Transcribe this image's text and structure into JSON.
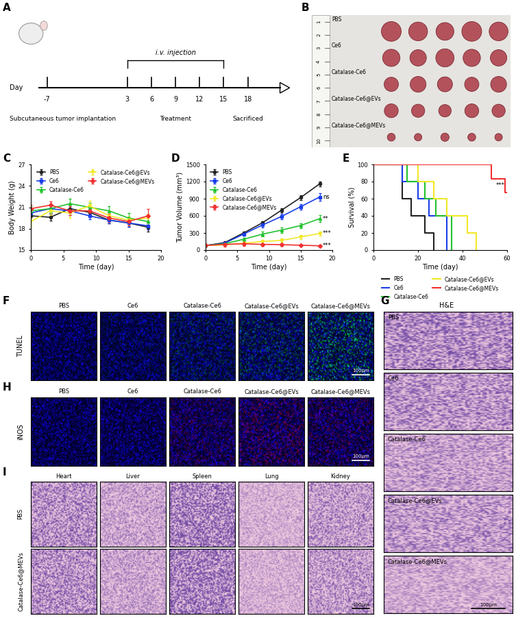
{
  "timeline": {
    "panel_label": "A",
    "axis_label": "Day",
    "days": [
      -7,
      3,
      6,
      9,
      12,
      15,
      18
    ],
    "injection_days": [
      3,
      6,
      9,
      12,
      15
    ],
    "injection_label": "i.v. injection",
    "events": [
      {
        "day": -7,
        "label": "Subcutaneous tumor implantation"
      },
      {
        "day": 9,
        "label": "Treatment"
      },
      {
        "day": 18,
        "label": "Sacrificed"
      }
    ]
  },
  "photo": {
    "panel_label": "B",
    "ruler_marks": [
      1,
      2,
      3,
      4,
      5,
      6,
      7,
      8,
      9,
      10
    ],
    "groups": [
      "PBS",
      "Ce6",
      "Catalase-Ce6",
      "Catalase-Ce6@EVs",
      "Catalase-Ce6@MEVs"
    ]
  },
  "chart_data": [
    {
      "panel_label": "C",
      "type": "line",
      "x_label": "Time (day)",
      "y_label": "Body Weight (g)",
      "x": [
        0,
        3,
        6,
        9,
        12,
        15,
        18
      ],
      "xlim": [
        0,
        20
      ],
      "xticks": [
        0,
        5,
        10,
        15,
        20
      ],
      "ylim": [
        15,
        27
      ],
      "yticks": [
        15,
        18,
        21,
        24,
        27
      ],
      "legend": "upper center",
      "series": [
        {
          "name": "PBS",
          "color": "#222222",
          "marker": "circle",
          "values": [
            19.8,
            19.6,
            20.8,
            20.3,
            19.2,
            18.8,
            18.2
          ],
          "errors": [
            0.6,
            0.5,
            0.6,
            0.5,
            0.5,
            0.5,
            0.6
          ]
        },
        {
          "name": "Ce6",
          "color": "#1a3ee8",
          "marker": "square",
          "values": [
            20.2,
            20.8,
            20.5,
            19.8,
            19.2,
            18.8,
            18.4
          ],
          "errors": [
            0.5,
            0.5,
            0.6,
            0.5,
            0.5,
            0.5,
            0.5
          ]
        },
        {
          "name": "Catalase-Ce6",
          "color": "#22c22e",
          "marker": "triangle_up",
          "values": [
            20.5,
            20.8,
            21.5,
            21.0,
            20.5,
            19.5,
            19.0
          ],
          "errors": [
            0.6,
            0.5,
            0.7,
            0.6,
            0.6,
            0.7,
            0.6
          ]
        },
        {
          "name": "Catalase-Ce6@EVs",
          "color": "#f2e827",
          "marker": "triangle_down",
          "values": [
            19.0,
            20.5,
            20.2,
            21.2,
            19.8,
            19.2,
            19.5
          ],
          "errors": [
            0.5,
            0.6,
            0.7,
            0.7,
            0.6,
            0.5,
            0.6
          ]
        },
        {
          "name": "Catalase-Ce6@MEVs",
          "color": "#f03030",
          "marker": "diamond",
          "values": [
            20.8,
            21.3,
            20.5,
            20.5,
            19.5,
            19.0,
            19.8
          ],
          "errors": [
            0.5,
            0.5,
            0.6,
            0.6,
            0.6,
            0.5,
            1.0
          ]
        }
      ]
    },
    {
      "panel_label": "D",
      "type": "line",
      "x_label": "Time (day)",
      "y_label": "Tumor Volume (mm³)",
      "x": [
        0,
        3,
        6,
        9,
        12,
        15,
        18
      ],
      "xlim": [
        0,
        20
      ],
      "xticks": [
        0,
        5,
        10,
        15,
        20
      ],
      "ylim": [
        0,
        1500
      ],
      "yticks": [
        0,
        300,
        600,
        900,
        1200,
        1500
      ],
      "legend": "upper left",
      "series": [
        {
          "name": "PBS",
          "color": "#222222",
          "marker": "circle",
          "values": [
            80,
            130,
            300,
            480,
            700,
            920,
            1160
          ],
          "errors": [
            10,
            15,
            25,
            30,
            35,
            40,
            45
          ]
        },
        {
          "name": "Ce6",
          "color": "#1a3ee8",
          "marker": "square",
          "values": [
            80,
            120,
            280,
            440,
            590,
            760,
            930
          ],
          "errors": [
            10,
            15,
            25,
            40,
            45,
            50,
            70
          ]
        },
        {
          "name": "Catalase-Ce6",
          "color": "#22c22e",
          "marker": "triangle_up",
          "values": [
            80,
            110,
            190,
            280,
            350,
            430,
            550
          ],
          "errors": [
            10,
            15,
            30,
            40,
            45,
            40,
            60
          ]
        },
        {
          "name": "Catalase-Ce6@EVs",
          "color": "#f2e827",
          "marker": "triangle_down",
          "values": [
            80,
            90,
            120,
            150,
            170,
            230,
            290
          ],
          "errors": [
            10,
            15,
            20,
            25,
            30,
            35,
            40
          ]
        },
        {
          "name": "Catalase-Ce6@MEVs",
          "color": "#f03030",
          "marker": "diamond",
          "values": [
            80,
            100,
            110,
            100,
            95,
            85,
            75
          ],
          "errors": [
            10,
            40,
            35,
            25,
            20,
            15,
            10
          ]
        }
      ],
      "significance": [
        "",
        "ns",
        "**",
        "***",
        "***"
      ]
    },
    {
      "panel_label": "E",
      "type": "step",
      "x_label": "Time (day)",
      "y_label": "Survival (%)",
      "xlim": [
        0,
        60
      ],
      "xticks": [
        0,
        20,
        40,
        60
      ],
      "ylim": [
        0,
        100
      ],
      "yticks": [
        0,
        20,
        40,
        60,
        80,
        100
      ],
      "legend": "below",
      "series": [
        {
          "name": "PBS",
          "color": "#222222",
          "x": [
            0,
            13,
            17,
            23,
            27
          ],
          "values": [
            100,
            60,
            40,
            20,
            0
          ]
        },
        {
          "name": "Ce6",
          "color": "#1a3ee8",
          "x": [
            0,
            13,
            20,
            25,
            33
          ],
          "values": [
            100,
            80,
            60,
            40,
            0
          ]
        },
        {
          "name": "Catalase-Ce6",
          "color": "#22c22e",
          "x": [
            0,
            15,
            23,
            28,
            35
          ],
          "values": [
            100,
            80,
            60,
            40,
            0
          ]
        },
        {
          "name": "Catalase-Ce6@EVs",
          "color": "#f2e827",
          "x": [
            0,
            20,
            27,
            33,
            42,
            46
          ],
          "values": [
            100,
            80,
            60,
            40,
            20,
            0
          ]
        },
        {
          "name": "Catalase-Ce6@MEVs",
          "color": "#f03030",
          "x": [
            0,
            53,
            59,
            60
          ],
          "values": [
            100,
            83,
            67,
            67
          ],
          "significance": "***"
        }
      ]
    }
  ],
  "tunel": {
    "panel_label": "F",
    "row_label": "TUNEL",
    "columns": [
      "PBS",
      "Ce6",
      "Catalase-Ce6",
      "Catalase-Ce6@EVs",
      "Catalase-Ce6@MEVs"
    ],
    "scale_bar": "100μm"
  },
  "he": {
    "panel_label": "G",
    "title": "H&E",
    "rows": [
      "PBS",
      "Ce6",
      "Catalase-Ce6",
      "Catalase-Ce6@EVs",
      "Catalase-Ce6@MEVs"
    ],
    "scale_bar": "100μm"
  },
  "inos": {
    "panel_label": "H",
    "row_label": "iNOS",
    "columns": [
      "PBS",
      "Ce6",
      "Catalase-Ce6",
      "Catalase-Ce6@EVs",
      "Catalase-Ce6@MEVs"
    ],
    "scale_bar": "100μm"
  },
  "organs": {
    "panel_label": "I",
    "columns": [
      "Heart",
      "Liver",
      "Spleen",
      "Lung",
      "Kidney"
    ],
    "rows": [
      "PBS",
      "Catalase-Ce6@MEVs"
    ],
    "scale_bar": "100μm"
  }
}
